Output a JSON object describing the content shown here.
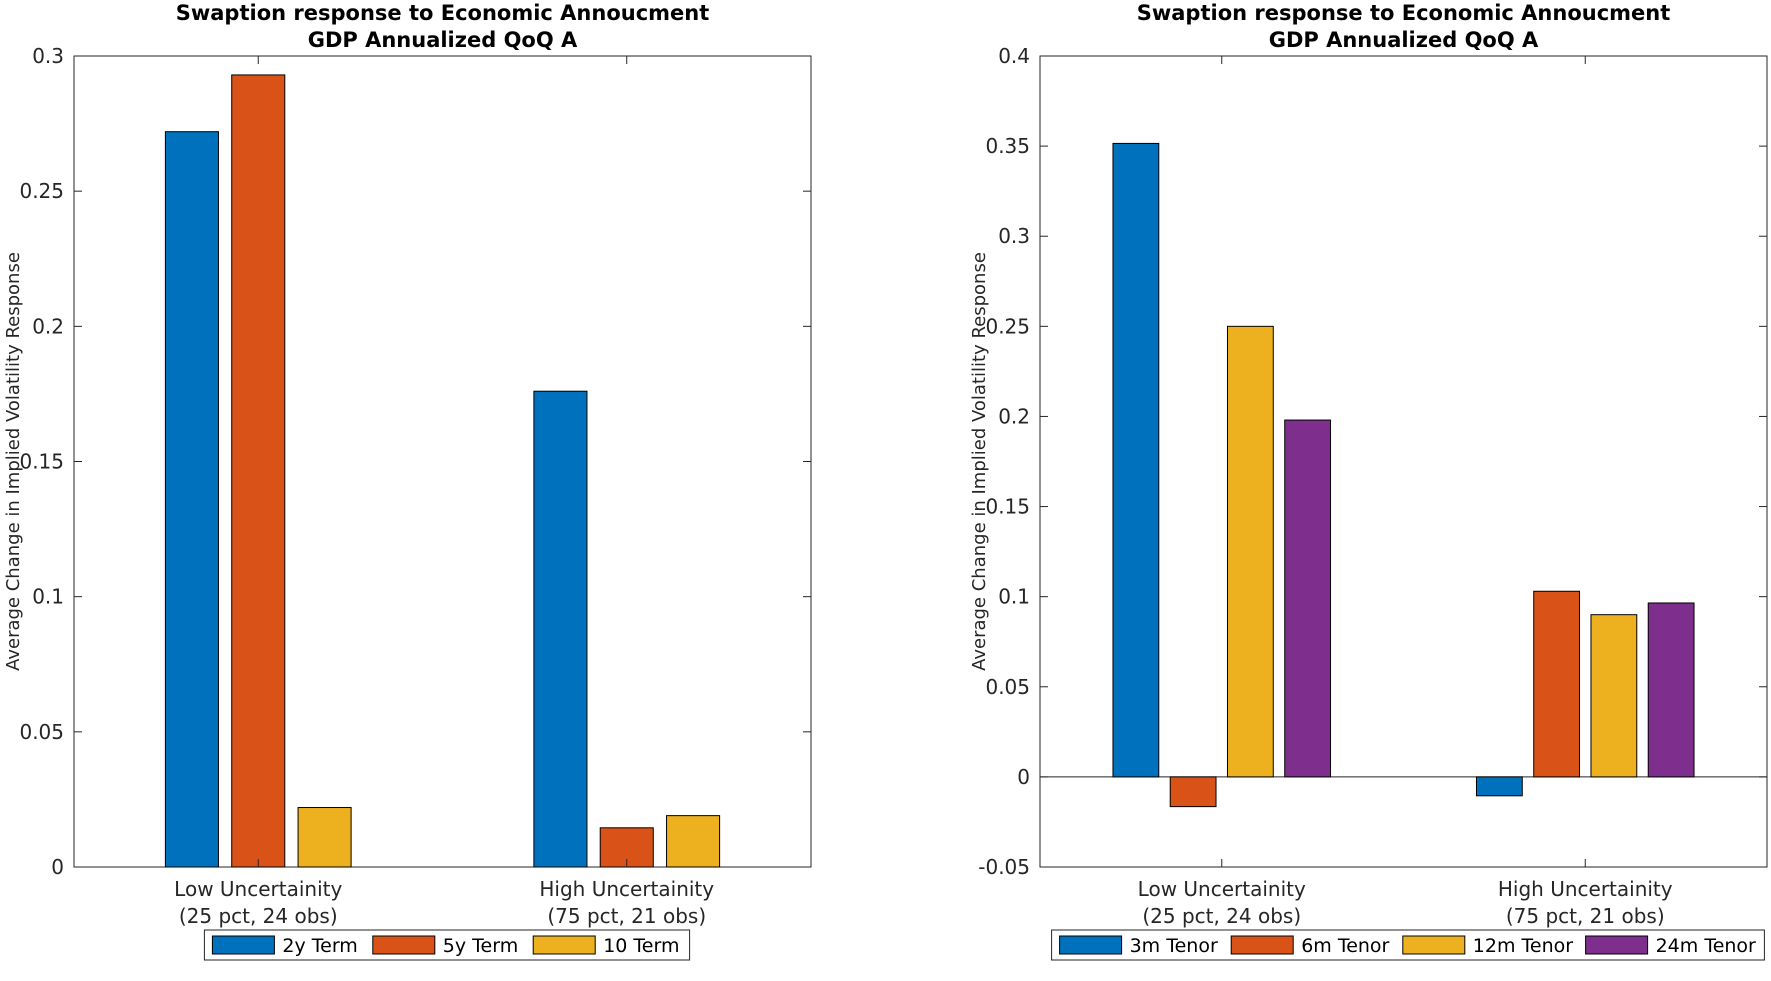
{
  "chart_data": [
    {
      "type": "bar",
      "title": [
        "Swaption response to Economic Annoucment",
        "GDP Annualized QoQ A"
      ],
      "ylabel": "Average Change in Implied Volatility Response",
      "xlabel": "",
      "categories": [
        [
          "Low Uncertainity",
          "(25 pct, 24 obs)"
        ],
        [
          "High Uncertainity",
          "(75 pct, 21 obs)"
        ]
      ],
      "series": [
        {
          "name": "2y Term",
          "color": "#0072BD",
          "values": [
            0.272,
            0.176
          ]
        },
        {
          "name": "5y Term",
          "color": "#D95319",
          "values": [
            0.293,
            0.0145
          ]
        },
        {
          "name": "10 Term",
          "color": "#EDB120",
          "values": [
            0.022,
            0.019
          ]
        }
      ],
      "ylim": [
        0,
        0.3
      ],
      "yticks": [
        "0",
        "0.05",
        "0.1",
        "0.15",
        "0.2",
        "0.25",
        "0.3"
      ],
      "grid": false,
      "legend": "bottom-outside, horizontal"
    },
    {
      "type": "bar",
      "title": [
        "Swaption response to Economic Annoucment",
        "GDP Annualized QoQ A"
      ],
      "ylabel": "Average Change in Implied Volatility Response",
      "xlabel": "",
      "categories": [
        [
          "Low Uncertainity",
          "(25 pct, 24 obs)"
        ],
        [
          "High Uncertainity",
          "(75 pct, 21 obs)"
        ]
      ],
      "series": [
        {
          "name": "3m Tenor",
          "color": "#0072BD",
          "values": [
            0.3515,
            -0.0105
          ]
        },
        {
          "name": "6m Tenor",
          "color": "#D95319",
          "values": [
            -0.0165,
            0.103
          ]
        },
        {
          "name": "12m Tenor",
          "color": "#EDB120",
          "values": [
            0.25,
            0.09
          ]
        },
        {
          "name": "24m Tenor",
          "color": "#7E2F8E",
          "values": [
            0.198,
            0.0965
          ]
        }
      ],
      "ylim": [
        -0.05,
        0.4
      ],
      "yticks": [
        "-0.05",
        "0",
        "0.05",
        "0.1",
        "0.15",
        "0.2",
        "0.25",
        "0.3",
        "0.35",
        "0.4"
      ],
      "grid": false,
      "legend": "bottom-outside, horizontal"
    }
  ]
}
